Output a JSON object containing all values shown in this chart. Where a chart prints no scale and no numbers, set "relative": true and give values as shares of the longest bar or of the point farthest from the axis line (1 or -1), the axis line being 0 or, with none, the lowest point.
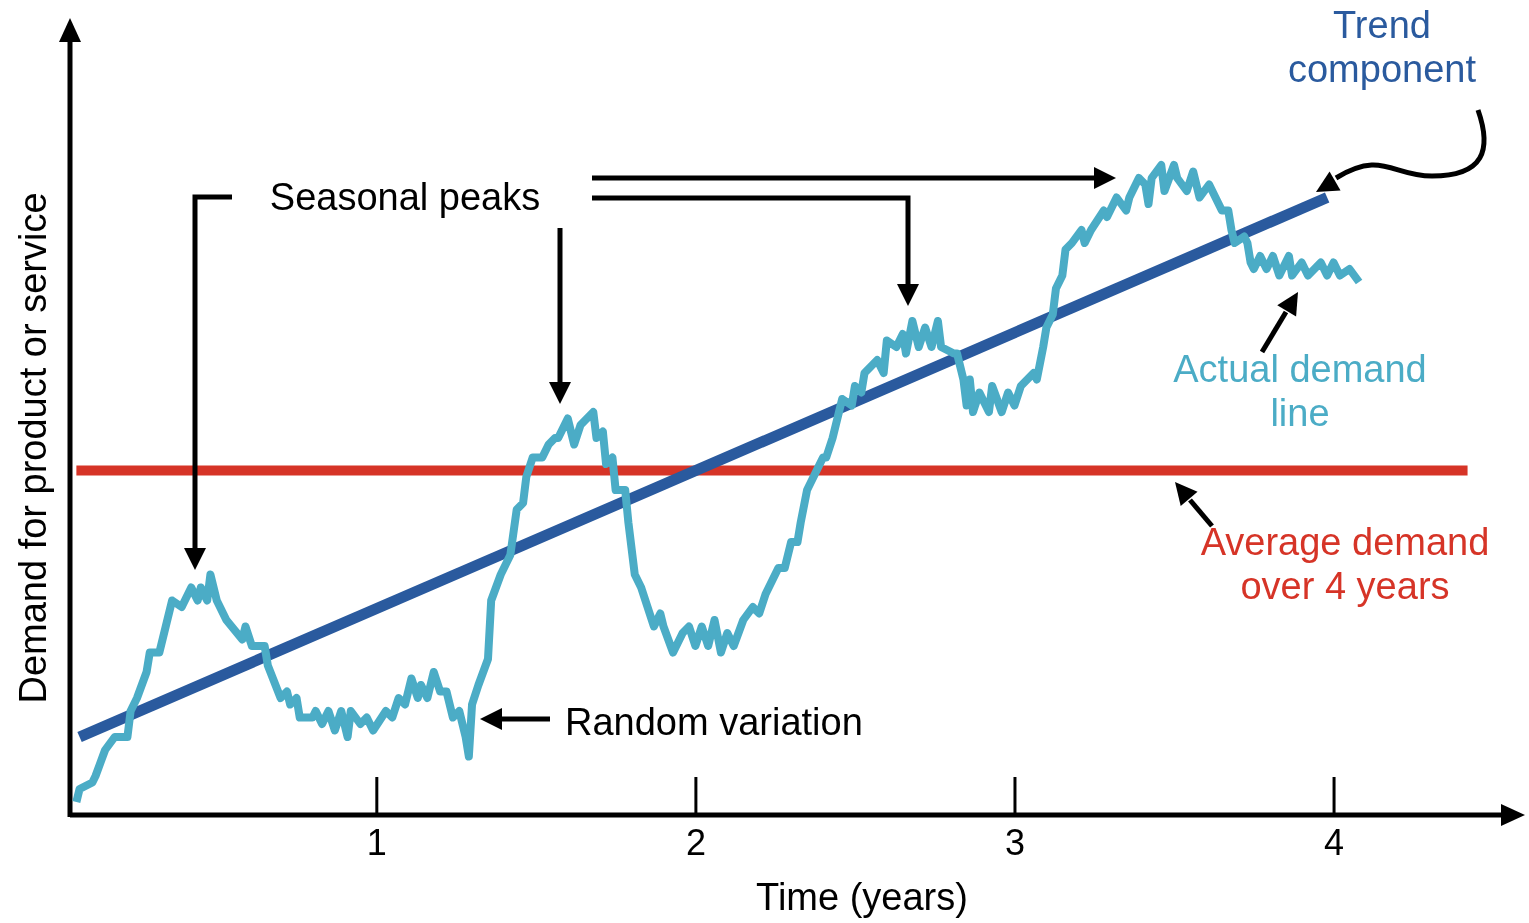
{
  "chart_data": {
    "type": "line",
    "relative": true,
    "xlabel": "Time (years)",
    "ylabel": "Demand for product or service",
    "xlim": [
      0.04,
      4.6
    ],
    "xticks": [
      1,
      2,
      3,
      4
    ],
    "grid": false,
    "legend": false,
    "marker": "none",
    "line_style": "solid",
    "annotations": [
      "Seasonal peaks",
      "Random variation"
    ],
    "series": [
      {
        "name": "Average demand over 4 years",
        "color": "#d63427",
        "x": [
          0.06,
          4.42
        ],
        "values": [
          0.53,
          0.53
        ]
      },
      {
        "name": "Trend component",
        "color": "#2a5a9e",
        "x": [
          0.07,
          3.98
        ],
        "values": [
          0.12,
          0.95
        ]
      },
      {
        "name": "Actual demand line",
        "color": "#4bacc6",
        "x": [
          0.06,
          0.07,
          0.11,
          0.12,
          0.15,
          0.18,
          0.22,
          0.23,
          0.25,
          0.28,
          0.29,
          0.32,
          0.34,
          0.36,
          0.39,
          0.42,
          0.44,
          0.45,
          0.47,
          0.48,
          0.5,
          0.53,
          0.58,
          0.59,
          0.61,
          0.65,
          0.66,
          0.7,
          0.72,
          0.73,
          0.75,
          0.76,
          0.8,
          0.81,
          0.83,
          0.85,
          0.87,
          0.89,
          0.91,
          0.92,
          0.95,
          0.97,
          0.99,
          1.03,
          1.05,
          1.07,
          1.09,
          1.11,
          1.13,
          1.14,
          1.16,
          1.18,
          1.2,
          1.22,
          1.24,
          1.26,
          1.28,
          1.29,
          1.3,
          1.32,
          1.35,
          1.36,
          1.39,
          1.42,
          1.44,
          1.46,
          1.47,
          1.49,
          1.52,
          1.54,
          1.56,
          1.57,
          1.6,
          1.62,
          1.64,
          1.68,
          1.69,
          1.71,
          1.72,
          1.74,
          1.75,
          1.78,
          1.79,
          1.81,
          1.83,
          1.85,
          1.87,
          1.89,
          1.9,
          1.93,
          1.96,
          1.98,
          2.0,
          2.02,
          2.04,
          2.06,
          2.08,
          2.1,
          2.12,
          2.15,
          2.18,
          2.2,
          2.22,
          2.26,
          2.28,
          2.3,
          2.32,
          2.33,
          2.35,
          2.38,
          2.4,
          2.41,
          2.43,
          2.44,
          2.46,
          2.49,
          2.5,
          2.52,
          2.53,
          2.57,
          2.59,
          2.6,
          2.63,
          2.65,
          2.66,
          2.68,
          2.7,
          2.72,
          2.74,
          2.76,
          2.77,
          2.81,
          2.82,
          2.84,
          2.85,
          2.86,
          2.87,
          2.89,
          2.92,
          2.93,
          2.96,
          2.98,
          3.0,
          3.02,
          3.06,
          3.07,
          3.09,
          3.1,
          3.12,
          3.13,
          3.15,
          3.16,
          3.18,
          3.21,
          3.22,
          3.24,
          3.28,
          3.29,
          3.32,
          3.35,
          3.36,
          3.39,
          3.41,
          3.42,
          3.43,
          3.46,
          3.47,
          3.5,
          3.51,
          3.54,
          3.56,
          3.58,
          3.61,
          3.63,
          3.65,
          3.67,
          3.68,
          3.69,
          3.72,
          3.73,
          3.74,
          3.75,
          3.77,
          3.79,
          3.81,
          3.83,
          3.86,
          3.87,
          3.9,
          3.92,
          3.96,
          3.98,
          4.0,
          4.02,
          4.05,
          4.08
        ],
        "values": [
          0.02,
          0.04,
          0.05,
          0.06,
          0.1,
          0.12,
          0.12,
          0.16,
          0.18,
          0.22,
          0.25,
          0.25,
          0.29,
          0.33,
          0.32,
          0.35,
          0.33,
          0.35,
          0.33,
          0.37,
          0.33,
          0.3,
          0.27,
          0.29,
          0.26,
          0.26,
          0.23,
          0.18,
          0.19,
          0.17,
          0.18,
          0.15,
          0.15,
          0.16,
          0.14,
          0.16,
          0.13,
          0.16,
          0.12,
          0.16,
          0.14,
          0.15,
          0.13,
          0.16,
          0.15,
          0.18,
          0.17,
          0.21,
          0.18,
          0.2,
          0.18,
          0.22,
          0.19,
          0.19,
          0.15,
          0.16,
          0.12,
          0.09,
          0.17,
          0.2,
          0.24,
          0.33,
          0.37,
          0.4,
          0.47,
          0.48,
          0.52,
          0.55,
          0.55,
          0.57,
          0.58,
          0.58,
          0.61,
          0.57,
          0.6,
          0.62,
          0.58,
          0.59,
          0.54,
          0.55,
          0.5,
          0.5,
          0.45,
          0.37,
          0.35,
          0.32,
          0.29,
          0.31,
          0.29,
          0.25,
          0.28,
          0.29,
          0.26,
          0.29,
          0.26,
          0.3,
          0.25,
          0.28,
          0.26,
          0.3,
          0.32,
          0.31,
          0.34,
          0.38,
          0.38,
          0.42,
          0.42,
          0.45,
          0.5,
          0.53,
          0.55,
          0.55,
          0.58,
          0.6,
          0.64,
          0.63,
          0.66,
          0.65,
          0.68,
          0.7,
          0.68,
          0.73,
          0.72,
          0.74,
          0.71,
          0.76,
          0.72,
          0.75,
          0.72,
          0.76,
          0.72,
          0.71,
          0.71,
          0.67,
          0.63,
          0.67,
          0.62,
          0.65,
          0.62,
          0.66,
          0.62,
          0.65,
          0.63,
          0.66,
          0.68,
          0.67,
          0.72,
          0.75,
          0.77,
          0.81,
          0.83,
          0.87,
          0.88,
          0.9,
          0.88,
          0.9,
          0.93,
          0.92,
          0.95,
          0.93,
          0.95,
          0.98,
          0.97,
          0.94,
          0.98,
          1.0,
          0.96,
          1.0,
          0.98,
          0.96,
          0.99,
          0.95,
          0.97,
          0.95,
          0.93,
          0.93,
          0.9,
          0.88,
          0.89,
          0.88,
          0.85,
          0.84,
          0.86,
          0.84,
          0.86,
          0.83,
          0.86,
          0.83,
          0.85,
          0.83,
          0.85,
          0.83,
          0.85,
          0.83,
          0.84,
          0.82
        ]
      }
    ]
  }
}
